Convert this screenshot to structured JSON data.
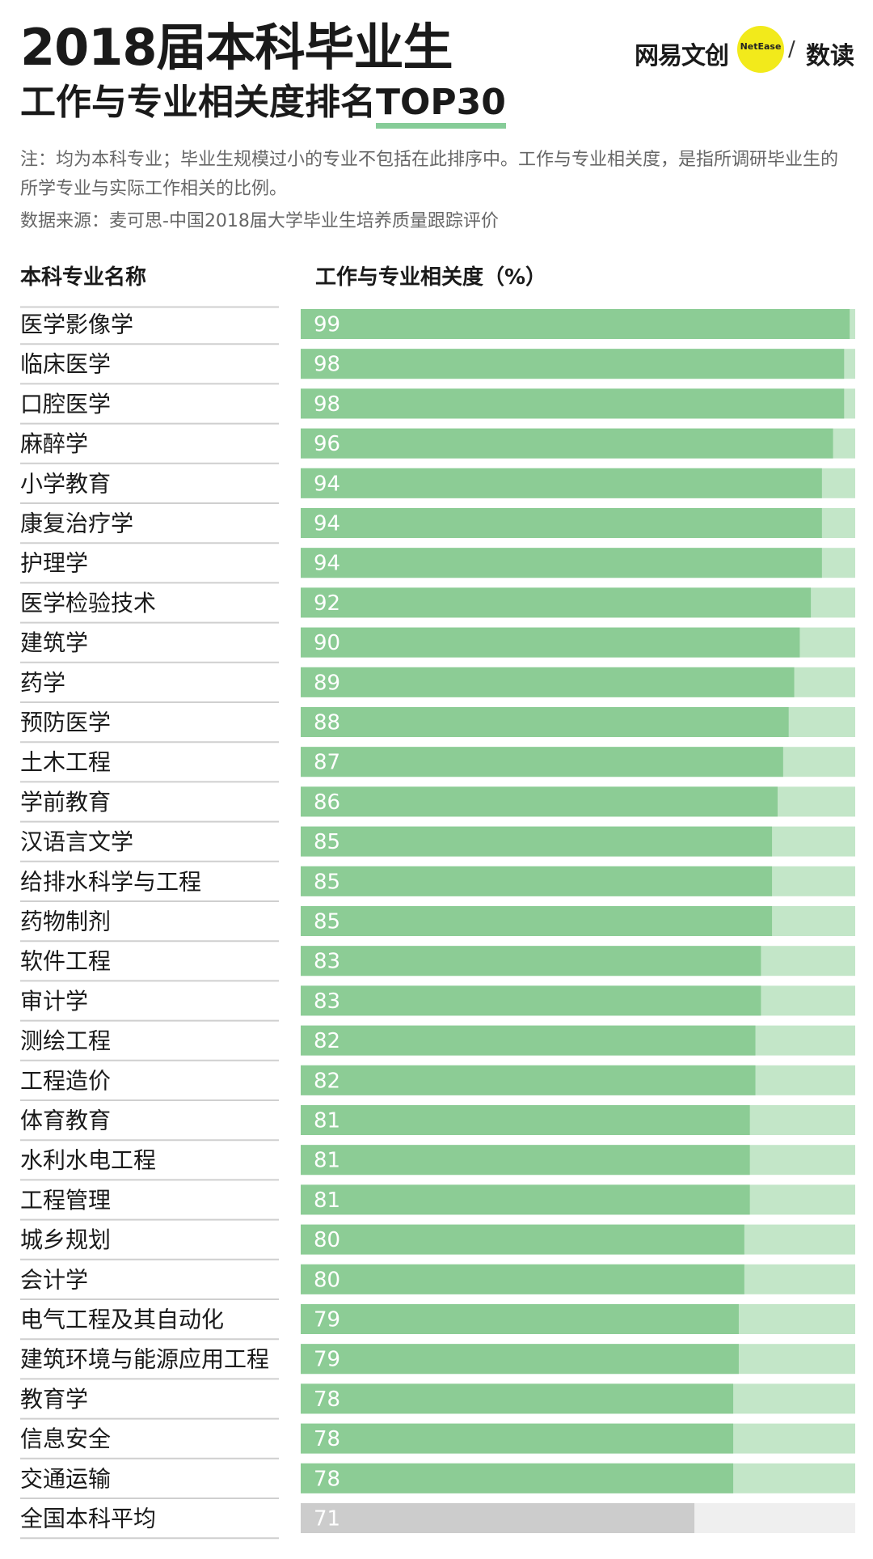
{
  "title": {
    "line1": "2018届本科毕业生",
    "line2_main": "工作与专业相关度排名",
    "line2_highlight": "TOP30"
  },
  "brand": {
    "wangyi": "网易文创",
    "netease": "NetEase",
    "slash": "/",
    "shudu": "数读"
  },
  "notes": {
    "note": "注：均为本科专业；毕业生规模过小的专业不包括在此排序中。工作与专业相关度，是指所调研毕业生的所学专业与实际工作相关的比例。",
    "source": "数据来源：麦可思-中国2018届大学毕业生培养质量跟踪评价"
  },
  "columns": {
    "name": "本科专业名称",
    "value": "工作与专业相关度（%）"
  },
  "colors": {
    "bar": "#8ccc95",
    "bar_track": "#c3e6c8",
    "average_bar": "#cccccc",
    "average_track": "#efefef",
    "highlight_underline": "#86cc98",
    "brand_dot": "#f2ea1b"
  },
  "chart_data": {
    "type": "bar",
    "orientation": "horizontal",
    "xlim": [
      0,
      100
    ],
    "categories": [
      "医学影像学",
      "临床医学",
      "口腔医学",
      "麻醉学",
      "小学教育",
      "康复治疗学",
      "护理学",
      "医学检验技术",
      "建筑学",
      "药学",
      "预防医学",
      "土木工程",
      "学前教育",
      "汉语言文学",
      "给排水科学与工程",
      "药物制剂",
      "软件工程",
      "审计学",
      "测绘工程",
      "工程造价",
      "体育教育",
      "水利水电工程",
      "工程管理",
      "城乡规划",
      "会计学",
      "电气工程及其自动化",
      "建筑环境与能源应用工程",
      "教育学",
      "信息安全",
      "交通运输",
      "全国本科平均"
    ],
    "values": [
      99,
      98,
      98,
      96,
      94,
      94,
      94,
      92,
      90,
      89,
      88,
      87,
      86,
      85,
      85,
      85,
      83,
      83,
      82,
      82,
      81,
      81,
      81,
      80,
      80,
      79,
      79,
      78,
      78,
      78,
      71
    ]
  }
}
